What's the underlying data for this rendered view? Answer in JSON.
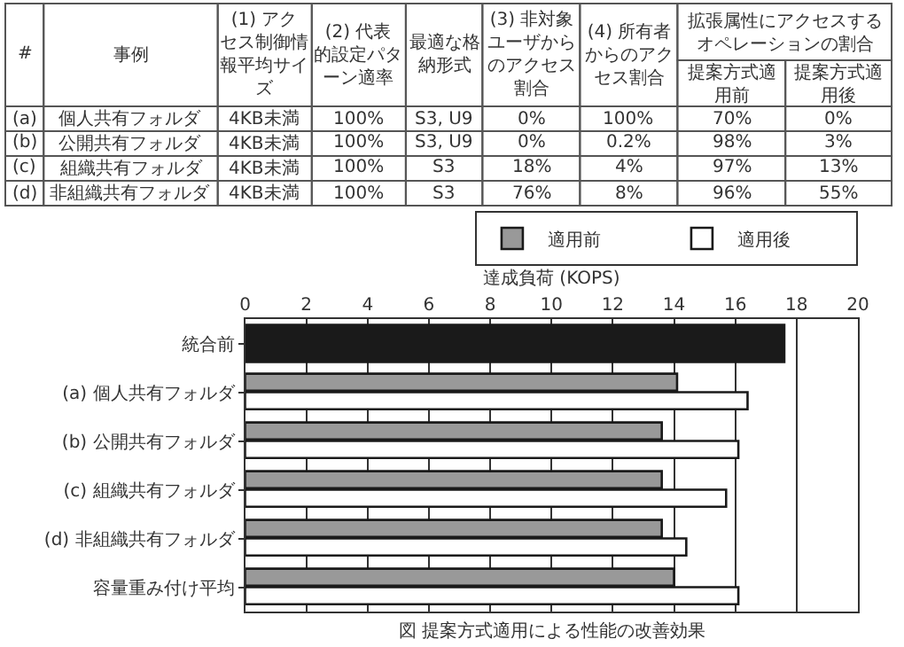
{
  "chart_data": [
    {
      "type": "other",
      "annotations": [
        "#",
        "事例",
        "(1) アクセス制御情報平均サイズ",
        "(2) 代表的設定パターン適率",
        "最適な格納形式",
        "(3) 非対象ユーザからのアクセス割合",
        "(4) 所有者からのアクセス割合",
        "拡張属性にアクセスするオペレーションの割合",
        "提案方式適用前",
        "提案方式適用後",
        "(a)",
        "個人共有フォルダ",
        "4KB未満",
        "100%",
        "S3, U9",
        "0%",
        "100%",
        "70%",
        "0%",
        "(b)",
        "公開共有フォルダ",
        "4KB未満",
        "100%",
        "S3, U9",
        "0%",
        "0.2%",
        "98%",
        "3%",
        "(c)",
        "組織共有フォルダ",
        "4KB未満",
        "100%",
        "S3",
        "18%",
        "4%",
        "97%",
        "13%",
        "(d)",
        "非組織共有フォルダ",
        "4KB未満",
        "100%",
        "S3",
        "76%",
        "8%",
        "96%",
        "55%"
      ]
    },
    {
      "type": "bar",
      "orientation": "horizontal",
      "xlabel": "達成負荷 (KOPS)",
      "categories": [
        "統合前",
        "(a) 個人共有フォルダ",
        "(b) 公開共有フォルダ",
        "(c) 組織共有フォルダ",
        "(d) 非組織共有フォルダ",
        "容量重み付け平均"
      ],
      "series": [
        {
          "color": "#1a1a1a",
          "values": [
            17.6,
            null,
            null,
            null,
            null,
            null
          ]
        },
        {
          "name": "適用前",
          "color": "#999999",
          "values": [
            null,
            14.1,
            13.6,
            13.6,
            13.6,
            14.0
          ]
        },
        {
          "name": "適用後",
          "color": "#ffffff",
          "values": [
            null,
            16.4,
            16.1,
            15.7,
            14.4,
            16.1
          ]
        }
      ],
      "xlim": [
        0,
        20
      ],
      "xticks": [
        0,
        2,
        4,
        6,
        8,
        10,
        12,
        14,
        16,
        18,
        20
      ],
      "grid": "x",
      "legend": "top right",
      "annotations": [
        "図 提案方式適用による性能の改善効果"
      ]
    }
  ]
}
